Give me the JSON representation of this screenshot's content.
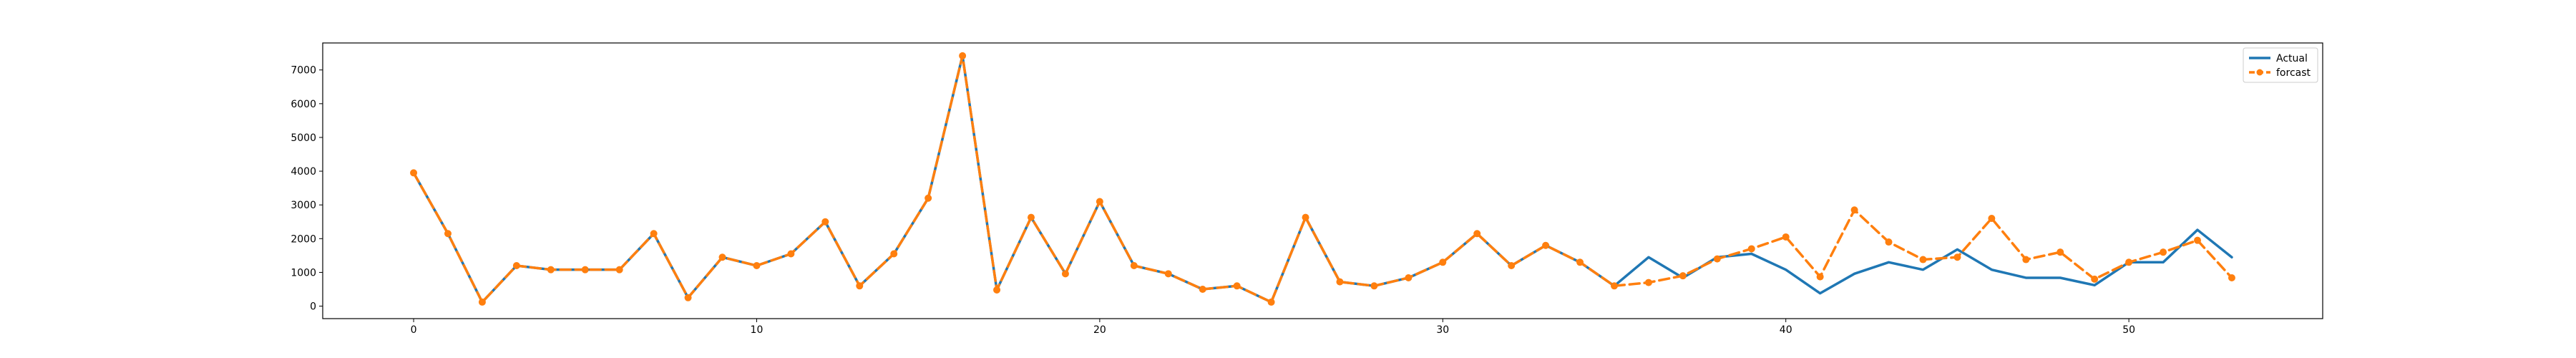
{
  "chart_data": {
    "type": "line",
    "title": "",
    "xlabel": "",
    "ylabel": "",
    "xlim": [
      -2.65,
      55.65
    ],
    "ylim": [
      -370,
      7800
    ],
    "x_ticks": [
      0,
      10,
      20,
      30,
      40,
      50
    ],
    "y_ticks": [
      0,
      1000,
      2000,
      3000,
      4000,
      5000,
      6000,
      7000
    ],
    "grid": false,
    "legend_position": "top-right",
    "x": [
      0,
      1,
      2,
      3,
      4,
      5,
      6,
      7,
      8,
      9,
      10,
      11,
      12,
      13,
      14,
      15,
      16,
      17,
      18,
      19,
      20,
      21,
      22,
      23,
      24,
      25,
      26,
      27,
      28,
      29,
      30,
      31,
      32,
      33,
      34,
      35,
      36,
      37,
      38,
      39,
      40,
      41,
      42,
      43,
      44,
      45,
      46,
      47,
      48,
      49,
      50,
      51,
      52,
      53
    ],
    "series": [
      {
        "name": "Actual",
        "color": "#1f77b4",
        "line_style": "solid",
        "marker": "none",
        "values": [
          3950,
          2150,
          120,
          1200,
          1080,
          1080,
          1080,
          2150,
          250,
          1450,
          1200,
          1550,
          2500,
          600,
          1550,
          3200,
          7420,
          480,
          2630,
          960,
          3100,
          1200,
          960,
          500,
          600,
          120,
          2630,
          720,
          600,
          840,
          1300,
          2150,
          1200,
          1800,
          1300,
          600,
          1450,
          840,
          1450,
          1550,
          1080,
          380,
          960,
          1300,
          1080,
          1680,
          1080,
          840,
          840,
          620,
          1300,
          1300,
          2260,
          1450
        ]
      },
      {
        "name": "forcast",
        "color": "#ff7f0e",
        "line_style": "dashed",
        "marker": "circle",
        "values": [
          3950,
          2150,
          120,
          1200,
          1080,
          1080,
          1080,
          2150,
          250,
          1450,
          1200,
          1550,
          2500,
          600,
          1550,
          3200,
          7420,
          480,
          2630,
          960,
          3100,
          1200,
          960,
          500,
          600,
          120,
          2630,
          720,
          600,
          840,
          1300,
          2150,
          1200,
          1800,
          1300,
          600,
          700,
          900,
          1400,
          1700,
          2050,
          870,
          2850,
          1900,
          1380,
          1450,
          2600,
          1380,
          1600,
          800,
          1300,
          1600,
          1950,
          840
        ]
      }
    ]
  }
}
